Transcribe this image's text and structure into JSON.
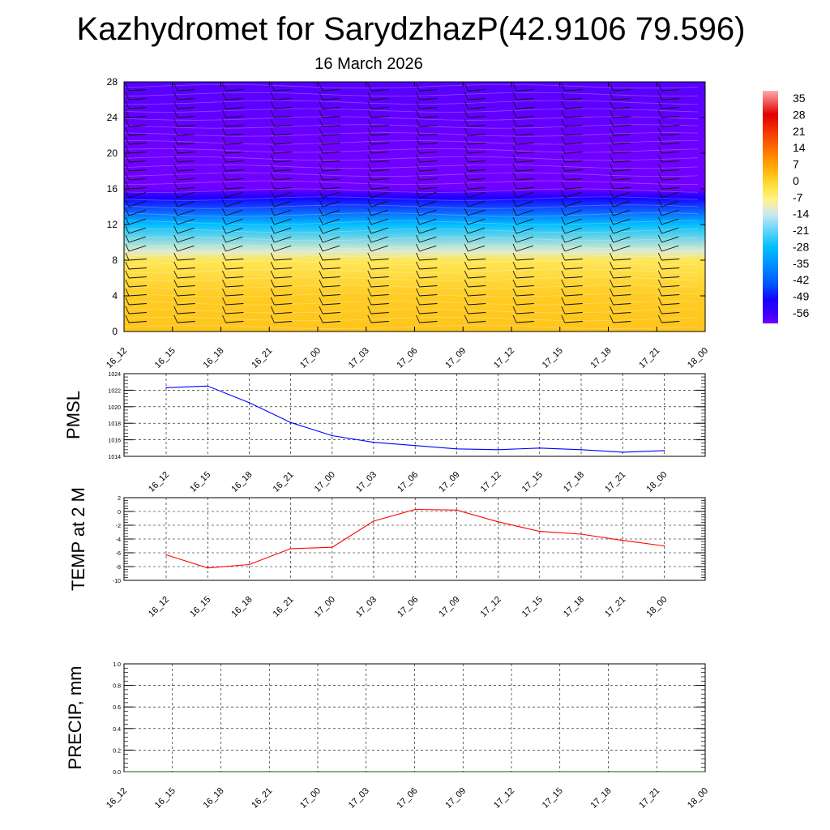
{
  "title": "Kazhydromet for SarydzhazP(42.9106 79.596)",
  "subtitle": "16 March 2026",
  "time_labels": [
    "16_12",
    "16_15",
    "16_18",
    "16_21",
    "17_00",
    "17_03",
    "17_06",
    "17_09",
    "17_12",
    "17_15",
    "17_18",
    "17_21",
    "18_00"
  ],
  "chart_data": [
    {
      "type": "heatmap",
      "name": "temperature-height-section",
      "y_ticks": [
        0,
        4,
        8,
        12,
        16,
        20,
        24,
        28
      ],
      "ylim": [
        0,
        28
      ],
      "x_categories": [
        "16_12",
        "16_15",
        "16_18",
        "16_21",
        "17_00",
        "17_03",
        "17_06",
        "17_09",
        "17_12",
        "17_15",
        "17_18",
        "17_21",
        "18_00"
      ],
      "colorbar_labels": [
        "35",
        "28",
        "21",
        "14",
        "7",
        "0",
        "-7",
        "-14",
        "-21",
        "-28",
        "-35",
        "-42",
        "-49",
        "-56"
      ],
      "colorbar_range": [
        -60,
        38
      ],
      "level_temperatures": [
        {
          "height": 0,
          "value": 2
        },
        {
          "height": 4,
          "value": 1
        },
        {
          "height": 8,
          "value": -4
        },
        {
          "height": 9,
          "value": -12
        },
        {
          "height": 12,
          "value": -28
        },
        {
          "height": 15,
          "value": -50
        },
        {
          "height": 16,
          "value": -60
        },
        {
          "height": 20,
          "value": -60
        },
        {
          "height": 28,
          "value": -58
        }
      ],
      "wind_barbs": true
    },
    {
      "type": "line",
      "name": "pmsl",
      "ylabel": "PMSL",
      "x": [
        "16_12",
        "16_15",
        "16_18",
        "16_21",
        "17_00",
        "17_03",
        "17_06",
        "17_09",
        "17_12",
        "17_15",
        "17_18",
        "17_21",
        "18_00"
      ],
      "values": [
        1022.3,
        1022.5,
        1020.5,
        1018.1,
        1016.5,
        1015.7,
        1015.3,
        1014.9,
        1014.8,
        1015.0,
        1014.8,
        1014.5,
        1014.7
      ],
      "ylim": [
        1014,
        1024
      ],
      "y_ticks": [
        1014,
        1016,
        1018,
        1020,
        1022,
        1024
      ],
      "color": "#0000ff"
    },
    {
      "type": "line",
      "name": "temp-2m",
      "ylabel": "TEMP at 2 M",
      "x": [
        "16_12",
        "16_15",
        "16_18",
        "16_21",
        "17_00",
        "17_03",
        "17_06",
        "17_09",
        "17_12",
        "17_15",
        "17_18",
        "17_21",
        "18_00"
      ],
      "values": [
        -6.3,
        -8.2,
        -7.7,
        -5.4,
        -5.2,
        -1.4,
        0.3,
        0.2,
        -1.5,
        -2.9,
        -3.3,
        -4.2,
        -5.0
      ],
      "ylim": [
        -10,
        2
      ],
      "y_ticks": [
        -10,
        -8,
        -6,
        -4,
        -2,
        0,
        2
      ],
      "color": "#ff0000"
    },
    {
      "type": "line",
      "name": "precip",
      "ylabel": "PRECIP, mm",
      "x": [
        "16_12",
        "16_15",
        "16_18",
        "16_21",
        "17_00",
        "17_03",
        "17_06",
        "17_09",
        "17_12",
        "17_15",
        "17_18",
        "17_21",
        "18_00"
      ],
      "values": [
        0,
        0,
        0,
        0,
        0,
        0,
        0,
        0,
        0,
        0,
        0,
        0,
        0
      ],
      "ylim": [
        0,
        1
      ],
      "y_ticks": [
        "0.0",
        "0.2",
        "0.4",
        "0.6",
        "0.8",
        "1.0"
      ],
      "color": "#006400"
    }
  ]
}
